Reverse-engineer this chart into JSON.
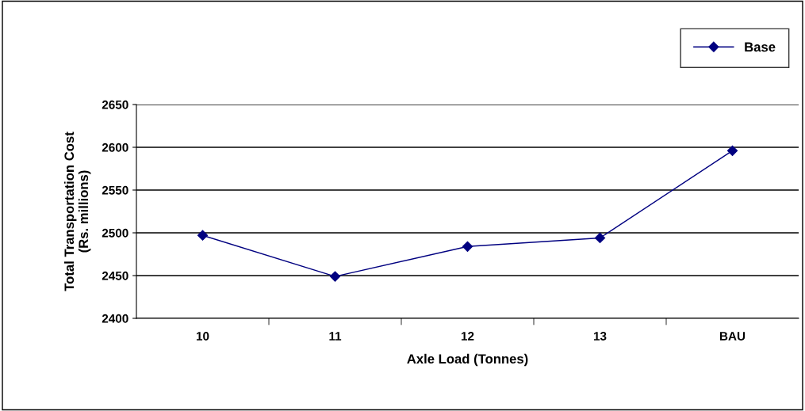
{
  "chart_data": {
    "type": "line",
    "xlabel": "Axle Load (Tonnes)",
    "ylabel": "Total Transportation Cost\n(Rs. millions)",
    "categories": [
      "10",
      "11",
      "12",
      "13",
      "BAU"
    ],
    "series": [
      {
        "name": "Base",
        "color": "#000080",
        "values": [
          2497,
          2449,
          2484,
          2494,
          2596
        ]
      }
    ],
    "ylim": [
      2400,
      2650
    ],
    "yticks": [
      2400,
      2450,
      2500,
      2550,
      2600,
      2650
    ],
    "grid": "y",
    "legend": "top right",
    "marker": "diamond",
    "line_style": "solid"
  }
}
